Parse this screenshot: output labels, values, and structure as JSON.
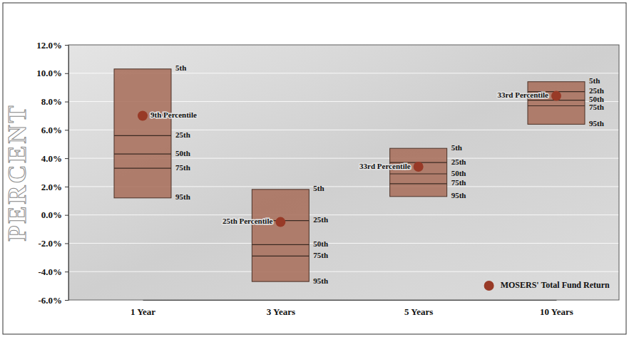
{
  "chart_data": {
    "type": "floating_box",
    "y_label": "PERCENT",
    "categories": [
      "1 Year",
      "3 Years",
      "5 Years",
      "10 Years"
    ],
    "series": [
      {
        "name": "5th",
        "values": [
          10.3,
          1.8,
          4.7,
          9.4
        ]
      },
      {
        "name": "25th",
        "values": [
          5.6,
          -0.4,
          3.7,
          8.7
        ]
      },
      {
        "name": "50th",
        "values": [
          4.3,
          -2.1,
          2.9,
          8.1
        ]
      },
      {
        "name": "75th",
        "values": [
          3.3,
          -2.9,
          2.2,
          7.7
        ]
      },
      {
        "name": "95th",
        "values": [
          1.2,
          -4.7,
          1.3,
          6.4
        ]
      }
    ],
    "color": "#a8705c",
    "points": {
      "name": "MOSERS' Total Fund Return",
      "color": "#983a27",
      "values": [
        7.0,
        -0.5,
        3.4,
        8.4
      ],
      "labels": [
        "9th Percentile",
        "25th Percentile",
        "33rd Percentile",
        "33rd Percentile"
      ]
    },
    "ylim": [
      -6,
      12
    ],
    "yticks": [
      {
        "value": -6,
        "label": "-6.0%"
      },
      {
        "value": -4,
        "label": "-4.0%"
      },
      {
        "value": -2,
        "label": "-2.0%"
      },
      {
        "value": 0,
        "label": "0.0%"
      },
      {
        "value": 2,
        "label": "2.0%"
      },
      {
        "value": 4,
        "label": "4.0%"
      },
      {
        "value": 6,
        "label": "6.0%"
      },
      {
        "value": 8,
        "label": "8.0%"
      },
      {
        "value": 10,
        "label": "10.0%"
      },
      {
        "value": 12,
        "label": "12.0%"
      }
    ],
    "grid": true,
    "legend": "lower right"
  }
}
